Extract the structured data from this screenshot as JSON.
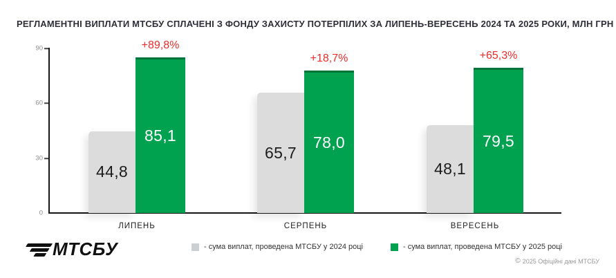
{
  "header": {
    "title": "РЕГЛАМЕНТНІ ВИПЛАТИ МТСБУ СПЛАЧЕНІ З ФОНДУ ЗАХИСТУ ПОТЕРПІЛИХ ЗА ЛИПЕНЬ-ВЕРЕСЕНЬ 2024 ТА 2025 РОКИ, МЛН ГРН"
  },
  "chart_data": {
    "type": "bar",
    "title": "РЕГЛАМЕНТНІ ВИПЛАТИ МТСБУ СПЛАЧЕНІ З ФОНДУ ЗАХИСТУ ПОТЕРПІЛИХ ЗА ЛИПЕНЬ-ВЕРЕСЕНЬ 2024 ТА 2025 РОКИ, МЛН ГРН",
    "categories": [
      "ЛИПЕНЬ",
      "СЕРПЕНЬ",
      "ВЕРЕСЕНЬ"
    ],
    "series": [
      {
        "name": "сума виплат, проведена МТСБУ у 2024 році",
        "values": [
          44.8,
          65.7,
          48.1
        ],
        "labels": [
          "44,8",
          "65,7",
          "48,1"
        ],
        "color": "#dcdcdc"
      },
      {
        "name": "сума виплат, проведена МТСБУ у 2025 році",
        "values": [
          85.1,
          78.0,
          79.5
        ],
        "labels": [
          "85,1",
          "78,0",
          "79,5"
        ],
        "color": "#00a14f"
      }
    ],
    "growth_labels": [
      "+89,8%",
      "+18,7%",
      "+65,3%"
    ],
    "y_ticks": [
      0,
      30,
      60,
      90
    ],
    "y_tick_labels_top_to_bottom": [
      "90",
      "60",
      "30",
      "0"
    ],
    "ylim": [
      0,
      90
    ],
    "grid": false,
    "legend_position": "bottom",
    "xlabel": "",
    "ylabel": ""
  },
  "legend": {
    "items": [
      {
        "label": "- сума виплат, проведена МТСБУ у 2024 році",
        "color": "#dcdcdc"
      },
      {
        "label": "- сума виплат, проведена МТСБУ у 2025 році",
        "color": "#00a14f"
      }
    ]
  },
  "logo": {
    "text": "МТСБУ"
  },
  "footer": {
    "icon_glyph": "©",
    "text": "2025 Офіційні дані МТСБУ"
  },
  "colors": {
    "bar_2024": "#dcdcdc",
    "bar_2025": "#00a14f",
    "bar_2025_cap": "#007439",
    "growth_red": "#ed2b2b",
    "axis": "#151515",
    "tick_label": "#8f8f8f"
  }
}
